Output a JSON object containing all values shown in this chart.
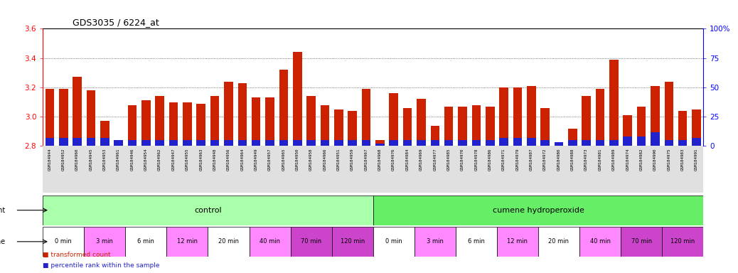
{
  "title": "GDS3035 / 6224_at",
  "samples": [
    "GSM184944",
    "GSM184952",
    "GSM184960",
    "GSM184945",
    "GSM184953",
    "GSM184961",
    "GSM184946",
    "GSM184954",
    "GSM184962",
    "GSM184947",
    "GSM184955",
    "GSM184963",
    "GSM184948",
    "GSM184956",
    "GSM184964",
    "GSM184949",
    "GSM184957",
    "GSM184965",
    "GSM184950",
    "GSM184958",
    "GSM184966",
    "GSM184951",
    "GSM184959",
    "GSM184967",
    "GSM184968",
    "GSM184976",
    "GSM184984",
    "GSM184969",
    "GSM184977",
    "GSM184985",
    "GSM184970",
    "GSM184978",
    "GSM184986",
    "GSM184971",
    "GSM184979",
    "GSM184987",
    "GSM184972",
    "GSM184980",
    "GSM184988",
    "GSM184973",
    "GSM184981",
    "GSM184989",
    "GSM184974",
    "GSM184982",
    "GSM184990",
    "GSM184975",
    "GSM184983",
    "GSM184991"
  ],
  "red_values": [
    3.19,
    3.19,
    3.27,
    3.18,
    2.97,
    2.84,
    3.08,
    3.11,
    3.14,
    3.1,
    3.1,
    3.09,
    3.14,
    3.24,
    3.23,
    3.13,
    3.13,
    3.32,
    3.44,
    3.14,
    3.08,
    3.05,
    3.04,
    3.19,
    2.84,
    3.16,
    3.06,
    3.12,
    2.94,
    3.07,
    3.07,
    3.08,
    3.07,
    3.2,
    3.2,
    3.21,
    3.06,
    2.82,
    2.92,
    3.14,
    3.19,
    3.39,
    3.01,
    3.07,
    3.21,
    3.24,
    3.04,
    3.05
  ],
  "blue_percentiles": [
    7,
    7,
    7,
    7,
    7,
    5,
    5,
    5,
    5,
    5,
    5,
    5,
    5,
    5,
    5,
    5,
    5,
    5,
    5,
    5,
    5,
    5,
    5,
    5,
    2,
    5,
    5,
    5,
    5,
    5,
    5,
    5,
    5,
    7,
    7,
    7,
    5,
    3,
    5,
    5,
    5,
    5,
    8,
    8,
    12,
    5,
    5,
    7
  ],
  "ylim_left": [
    2.8,
    3.6
  ],
  "ylim_right": [
    0,
    100
  ],
  "yticks_left": [
    2.8,
    3.0,
    3.2,
    3.4,
    3.6
  ],
  "yticks_right": [
    0,
    25,
    50,
    75,
    100
  ],
  "bar_color_red": "#cc2200",
  "bar_color_blue": "#2222cc",
  "chart_bg": "#ffffff",
  "xlabel_bg": "#e0e0e0",
  "ctrl_color": "#aaffaa",
  "cumene_color": "#66ee66",
  "time_colors": [
    "#ffffff",
    "#ff88ff",
    "#ffffff",
    "#ff88ff",
    "#ffffff",
    "#ff88ff",
    "#cc44cc",
    "#cc44cc"
  ],
  "time_labels": [
    "0 min",
    "3 min",
    "6 min",
    "12 min",
    "20 min",
    "40 min",
    "70 min",
    "120 min"
  ],
  "legend_red": "transformed count",
  "legend_blue": "percentile rank within the sample"
}
